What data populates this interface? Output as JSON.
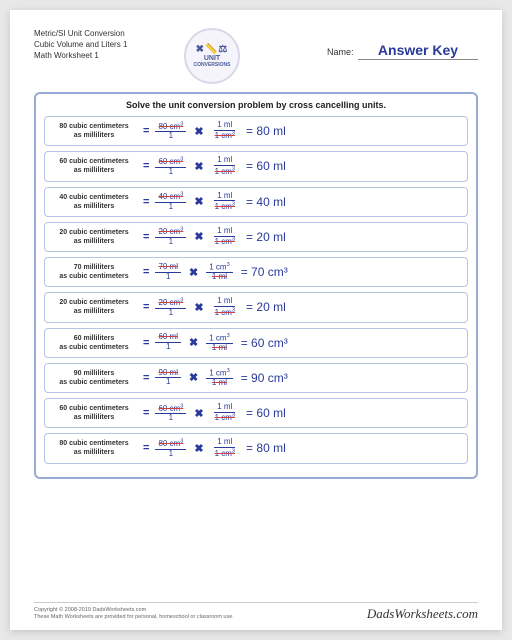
{
  "header": {
    "title1": "Metric/SI Unit Conversion",
    "title2": "Cubic Volume and Liters 1",
    "title3": "Math Worksheet 1",
    "logo_top": "UNIT",
    "logo_bot": "CONVERSIONS",
    "name_label": "Name:",
    "name_value": "Answer Key"
  },
  "instruction": "Solve the unit conversion problem by cross cancelling units.",
  "problems": [
    {
      "p1": "80 cubic centimeters",
      "p2": "as milliliters",
      "n1": "80 cm",
      "u1": "3",
      "d1": "1",
      "n2": "1 ml",
      "d2": "1 cm",
      "du": "3",
      "res": "= 80 ml"
    },
    {
      "p1": "60 cubic centimeters",
      "p2": "as milliliters",
      "n1": "60 cm",
      "u1": "3",
      "d1": "1",
      "n2": "1 ml",
      "d2": "1 cm",
      "du": "3",
      "res": "= 60 ml"
    },
    {
      "p1": "40 cubic centimeters",
      "p2": "as milliliters",
      "n1": "40 cm",
      "u1": "3",
      "d1": "1",
      "n2": "1 ml",
      "d2": "1 cm",
      "du": "3",
      "res": "= 40 ml"
    },
    {
      "p1": "20 cubic centimeters",
      "p2": "as milliliters",
      "n1": "20 cm",
      "u1": "3",
      "d1": "1",
      "n2": "1 ml",
      "d2": "1 cm",
      "du": "3",
      "res": "= 20 ml"
    },
    {
      "p1": "70 milliliters",
      "p2": "as cubic centimeters",
      "n1": "70 ml",
      "u1": "",
      "d1": "1",
      "n2": "1 cm",
      "nu": "3",
      "d2": "1 ml",
      "du": "",
      "res": "= 70 cm³"
    },
    {
      "p1": "20 cubic centimeters",
      "p2": "as milliliters",
      "n1": "20 cm",
      "u1": "3",
      "d1": "1",
      "n2": "1 ml",
      "d2": "1 cm",
      "du": "3",
      "res": "= 20 ml"
    },
    {
      "p1": "60 milliliters",
      "p2": "as cubic centimeters",
      "n1": "60 ml",
      "u1": "",
      "d1": "1",
      "n2": "1 cm",
      "nu": "3",
      "d2": "1 ml",
      "du": "",
      "res": "= 60 cm³"
    },
    {
      "p1": "90 milliliters",
      "p2": "as cubic centimeters",
      "n1": "90 ml",
      "u1": "",
      "d1": "1",
      "n2": "1 cm",
      "nu": "3",
      "d2": "1 ml",
      "du": "",
      "res": "= 90 cm³"
    },
    {
      "p1": "60 cubic centimeters",
      "p2": "as milliliters",
      "n1": "60 cm",
      "u1": "3",
      "d1": "1",
      "n2": "1 ml",
      "d2": "1 cm",
      "du": "3",
      "res": "= 60 ml"
    },
    {
      "p1": "80 cubic centimeters",
      "p2": "as milliliters",
      "n1": "80 cm",
      "u1": "3",
      "d1": "1",
      "n2": "1 ml",
      "d2": "1 cm",
      "du": "3",
      "res": "= 80 ml"
    }
  ],
  "footer": {
    "copy1": "Copyright © 2008-2019 DadsWorksheets.com",
    "copy2": "These Math Worksheets are provided for personal, homeschool or classroom use.",
    "brand": "DadsWorksheets.com"
  },
  "colors": {
    "accent": "#2a3a9a",
    "border": "#9aaad8",
    "row_border": "#b8c4e4"
  }
}
